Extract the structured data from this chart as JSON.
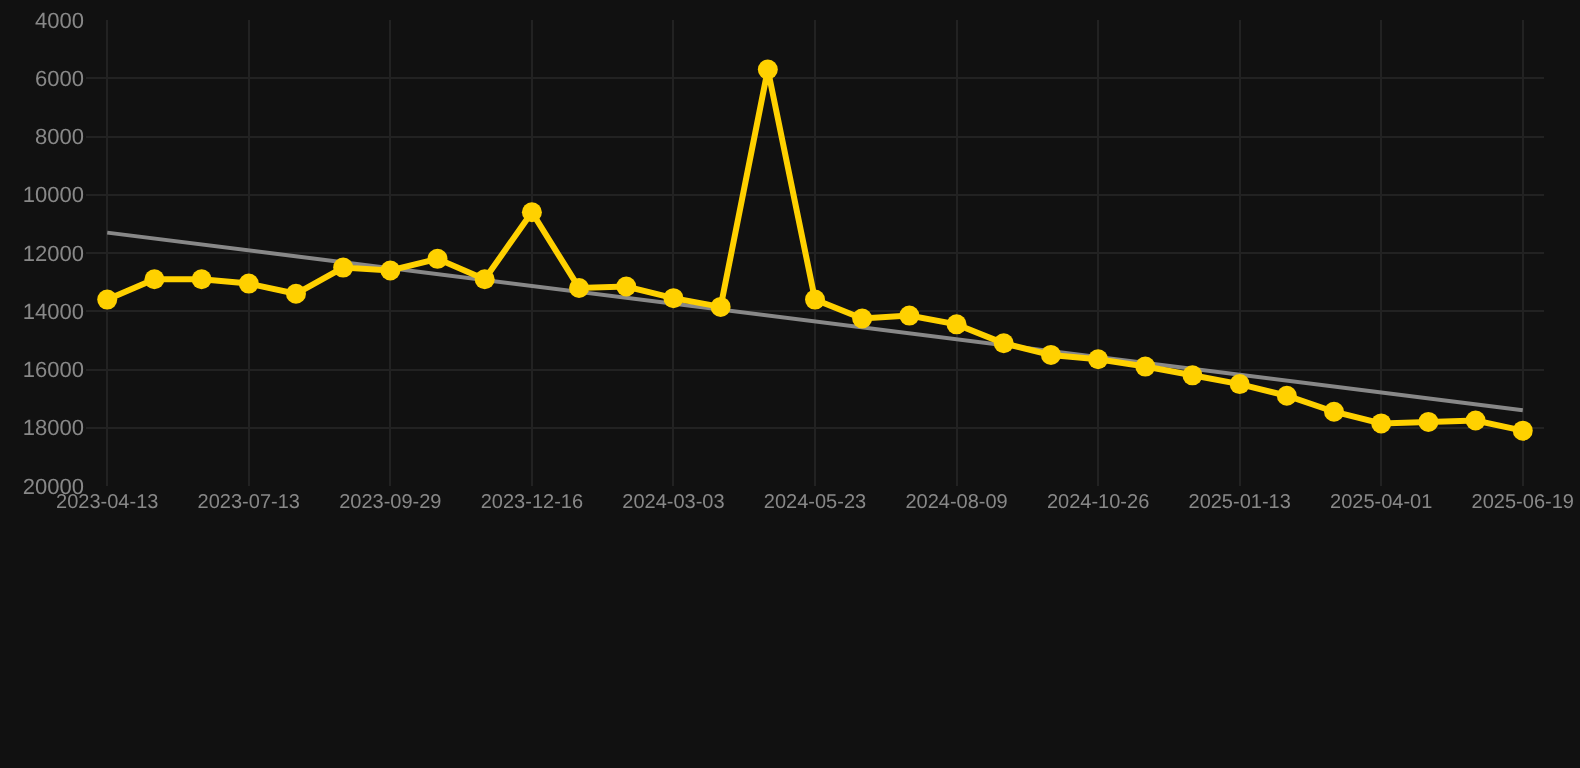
{
  "chart_data": {
    "type": "line",
    "categories": [
      "2023-04-13",
      null,
      null,
      "2023-07-13",
      null,
      null,
      "2023-09-29",
      null,
      null,
      "2023-12-16",
      null,
      null,
      "2024-03-03",
      null,
      null,
      "2024-05-23",
      null,
      null,
      "2024-08-09",
      null,
      null,
      "2024-10-26",
      null,
      null,
      "2025-01-13",
      null,
      null,
      "2025-04-01",
      null,
      null,
      "2025-06-19"
    ],
    "series": [
      {
        "color": "#ffd100",
        "marker": "circle",
        "values": [
          13600,
          12900,
          12900,
          13050,
          13400,
          12500,
          12600,
          12200,
          12900,
          10600,
          13200,
          13150,
          13550,
          13850,
          5700,
          13600,
          14250,
          14150,
          14450,
          15100,
          15500,
          15650,
          15900,
          16200,
          16500,
          16900,
          17450,
          17850,
          17800,
          17750,
          18100
        ]
      },
      {
        "color": "#888888",
        "marker": "none",
        "values": [
          11300,
          null,
          null,
          null,
          null,
          null,
          null,
          null,
          null,
          null,
          null,
          null,
          null,
          null,
          null,
          null,
          null,
          null,
          null,
          null,
          null,
          null,
          null,
          null,
          null,
          null,
          null,
          null,
          null,
          null,
          17400
        ]
      }
    ],
    "ylim": [
      20000,
      4000
    ],
    "yticks": [
      4000,
      6000,
      8000,
      10000,
      12000,
      14000,
      16000,
      18000,
      20000
    ],
    "grid": true
  }
}
